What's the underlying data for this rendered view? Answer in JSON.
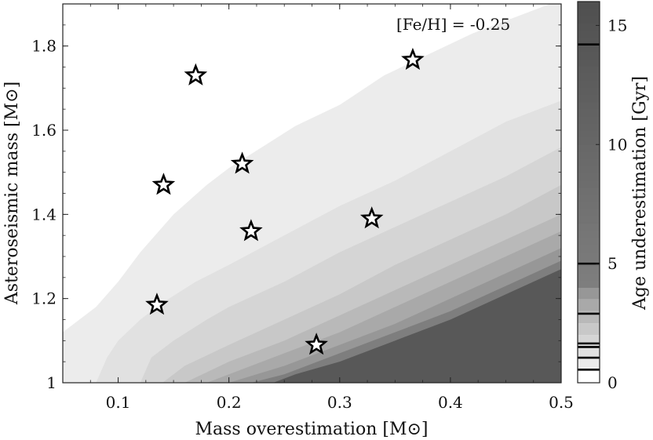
{
  "chart_data": {
    "type": "contour",
    "annotation": "[Fe/H] = -0.25",
    "xlabel": "Mass overestimation [M⊙]",
    "ylabel": "Asteroseismic mass [M⊙]",
    "colorbar_label": "Age underestimation [Gyr]",
    "xlim": [
      0.05,
      0.5
    ],
    "ylim": [
      1.0,
      1.9
    ],
    "x_ticks": [
      0.1,
      0.2,
      0.3,
      0.4,
      0.5
    ],
    "x_tick_labels": [
      "0.1",
      "0.2",
      "0.3",
      "0.4",
      "0.5"
    ],
    "y_ticks": [
      1.0,
      1.2,
      1.4,
      1.6,
      1.8
    ],
    "y_tick_labels": [
      "1",
      "1.2",
      "1.4",
      "1.6",
      "1.8"
    ],
    "colorbar_lim": [
      0,
      16
    ],
    "colorbar_ticks": [
      0,
      5,
      10,
      15
    ],
    "colorbar_tick_labels": [
      "0",
      "5",
      "10",
      "15"
    ],
    "colorbar_marks": [
      0.55,
      1.05,
      1.5,
      1.65,
      2.9,
      5.0,
      14.2
    ],
    "contour_levels": [
      0,
      0.5,
      1,
      1.5,
      2,
      2.5,
      3,
      3.5,
      4,
      16
    ],
    "contour_colors": [
      "#ffffff",
      "#ececec",
      "#e1e1e1",
      "#d5d5d5",
      "#c8c8c8",
      "#b9b9b9",
      "#a9a9a9",
      "#979797",
      "#7e7e7e",
      "#585858"
    ],
    "contour_boundaries": [
      [
        [
          0.05,
          1.12
        ],
        [
          0.08,
          1.18
        ],
        [
          0.1,
          1.24
        ],
        [
          0.12,
          1.31
        ],
        [
          0.15,
          1.4
        ],
        [
          0.18,
          1.47
        ],
        [
          0.2,
          1.51
        ],
        [
          0.23,
          1.56
        ],
        [
          0.26,
          1.61
        ],
        [
          0.3,
          1.66
        ],
        [
          0.34,
          1.73
        ],
        [
          0.38,
          1.78
        ],
        [
          0.42,
          1.83
        ],
        [
          0.46,
          1.87
        ],
        [
          0.5,
          1.91
        ]
      ],
      [
        [
          0.08,
          1.0
        ],
        [
          0.09,
          1.06
        ],
        [
          0.1,
          1.1
        ],
        [
          0.12,
          1.15
        ],
        [
          0.14,
          1.19
        ],
        [
          0.17,
          1.24
        ],
        [
          0.2,
          1.28
        ],
        [
          0.25,
          1.35
        ],
        [
          0.3,
          1.42
        ],
        [
          0.35,
          1.48
        ],
        [
          0.4,
          1.55
        ],
        [
          0.45,
          1.62
        ],
        [
          0.5,
          1.67
        ]
      ],
      [
        [
          0.12,
          1.0
        ],
        [
          0.13,
          1.06
        ],
        [
          0.15,
          1.1
        ],
        [
          0.18,
          1.15
        ],
        [
          0.2,
          1.18
        ],
        [
          0.25,
          1.24
        ],
        [
          0.3,
          1.31
        ],
        [
          0.35,
          1.37
        ],
        [
          0.4,
          1.43
        ],
        [
          0.45,
          1.49
        ],
        [
          0.5,
          1.56
        ]
      ],
      [
        [
          0.14,
          1.0
        ],
        [
          0.16,
          1.04
        ],
        [
          0.2,
          1.09
        ],
        [
          0.25,
          1.15
        ],
        [
          0.3,
          1.21
        ],
        [
          0.35,
          1.28
        ],
        [
          0.4,
          1.34
        ],
        [
          0.45,
          1.4
        ],
        [
          0.5,
          1.47
        ]
      ],
      [
        [
          0.16,
          1.0
        ],
        [
          0.2,
          1.05
        ],
        [
          0.25,
          1.1
        ],
        [
          0.3,
          1.16
        ],
        [
          0.35,
          1.22
        ],
        [
          0.4,
          1.28
        ],
        [
          0.45,
          1.34
        ],
        [
          0.5,
          1.4
        ]
      ],
      [
        [
          0.18,
          1.0
        ],
        [
          0.2,
          1.02
        ],
        [
          0.25,
          1.07
        ],
        [
          0.3,
          1.12
        ],
        [
          0.35,
          1.18
        ],
        [
          0.4,
          1.24
        ],
        [
          0.45,
          1.3
        ],
        [
          0.5,
          1.36
        ]
      ],
      [
        [
          0.2,
          1.0
        ],
        [
          0.25,
          1.04
        ],
        [
          0.3,
          1.09
        ],
        [
          0.35,
          1.14
        ],
        [
          0.4,
          1.2
        ],
        [
          0.45,
          1.26
        ],
        [
          0.5,
          1.32
        ]
      ],
      [
        [
          0.22,
          1.0
        ],
        [
          0.25,
          1.02
        ],
        [
          0.3,
          1.07
        ],
        [
          0.35,
          1.12
        ],
        [
          0.4,
          1.17
        ],
        [
          0.45,
          1.23
        ],
        [
          0.5,
          1.29
        ]
      ],
      [
        [
          0.24,
          1.0
        ],
        [
          0.26,
          1.02
        ],
        [
          0.3,
          1.05
        ],
        [
          0.35,
          1.1
        ],
        [
          0.4,
          1.15
        ],
        [
          0.45,
          1.21
        ],
        [
          0.5,
          1.27
        ]
      ]
    ],
    "stars": [
      {
        "x": 0.17,
        "y": 1.73
      },
      {
        "x": 0.141,
        "y": 1.47
      },
      {
        "x": 0.212,
        "y": 1.52
      },
      {
        "x": 0.22,
        "y": 1.36
      },
      {
        "x": 0.135,
        "y": 1.185
      },
      {
        "x": 0.329,
        "y": 1.39
      },
      {
        "x": 0.366,
        "y": 1.767
      },
      {
        "x": 0.279,
        "y": 1.09
      }
    ]
  }
}
